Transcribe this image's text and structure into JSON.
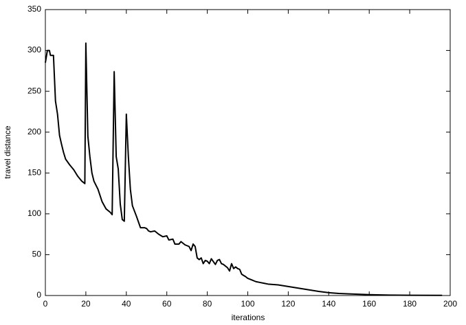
{
  "chart_data": {
    "type": "line",
    "x_label": "iterations",
    "y_label": "travel distance",
    "x": [
      0,
      1,
      2,
      2.5,
      4,
      5,
      6,
      7,
      8,
      9,
      10,
      12,
      14,
      16,
      18,
      19.5,
      20,
      21,
      22,
      23,
      24,
      26,
      28,
      30,
      32,
      33,
      34,
      35,
      36,
      37,
      38,
      39,
      40,
      41,
      42,
      43,
      45,
      47,
      49,
      50,
      51,
      52,
      54,
      56,
      58,
      60,
      61,
      63,
      64,
      66,
      67,
      69,
      71,
      72,
      73,
      74,
      75,
      76,
      77,
      78,
      79,
      80,
      81,
      82,
      84,
      85,
      86,
      87,
      88,
      90,
      91,
      92,
      93,
      94,
      95,
      96,
      97,
      99,
      100,
      102,
      104,
      106,
      108,
      110,
      115,
      120,
      125,
      130,
      135,
      140,
      145,
      150,
      160,
      170,
      180,
      196
    ],
    "series": [
      {
        "name": "travel distance",
        "color": "#000000",
        "values": [
          285,
          300,
          300,
          294,
          294,
          238,
          222,
          196,
          185,
          175,
          167,
          160,
          154,
          146,
          140,
          137,
          309,
          195,
          170,
          150,
          140,
          130,
          115,
          106,
          102,
          99,
          274,
          170,
          155,
          112,
          93,
          91,
          222,
          170,
          130,
          110,
          97,
          83,
          83,
          82,
          79,
          78,
          79,
          75,
          72,
          73,
          68,
          69,
          63,
          63,
          66,
          62,
          60,
          55,
          63,
          60,
          46,
          44,
          46,
          39,
          43,
          42,
          39,
          45,
          38,
          43,
          44,
          39,
          38,
          34,
          30,
          39,
          33,
          35,
          33,
          32,
          26,
          23,
          21,
          19,
          17,
          16,
          15,
          14,
          13,
          11,
          9,
          7,
          5,
          3.5,
          2.5,
          2,
          1,
          0.5,
          0.3,
          0.2
        ]
      }
    ],
    "xlim": [
      0,
      200
    ],
    "xticks": [
      0,
      20,
      40,
      60,
      80,
      100,
      120,
      140,
      160,
      180,
      200
    ],
    "ylim": [
      0,
      350
    ],
    "yticks": [
      0,
      50,
      100,
      150,
      200,
      250,
      300,
      350
    ]
  }
}
